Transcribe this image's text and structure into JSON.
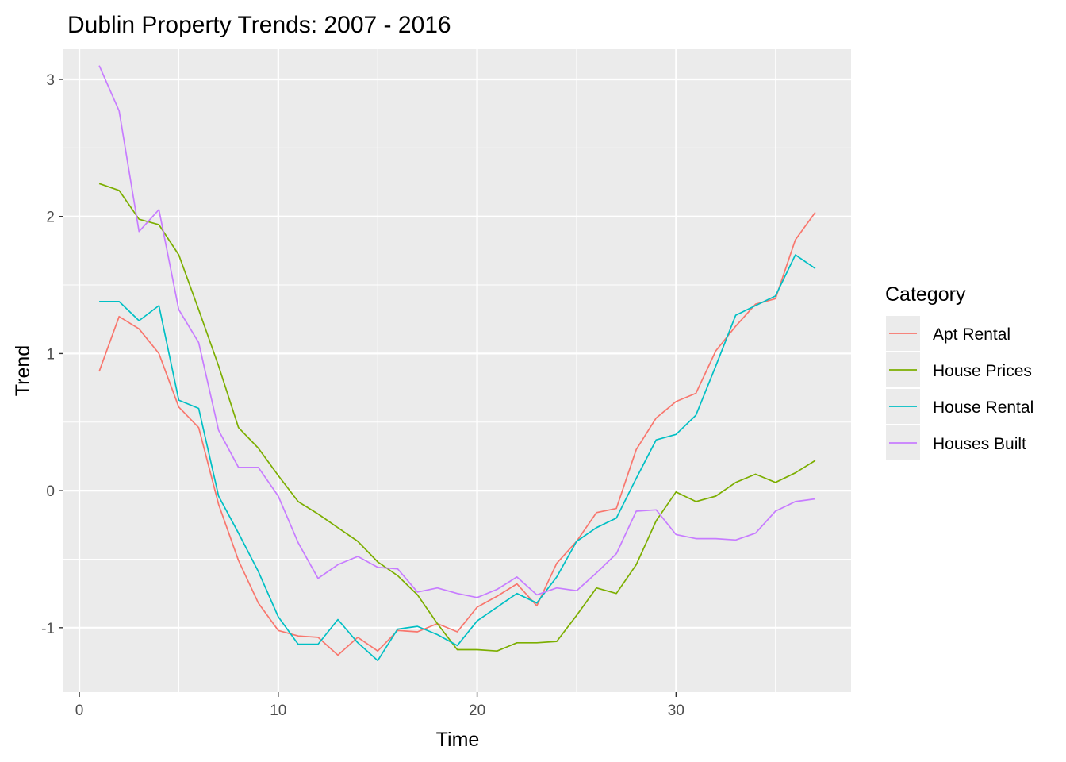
{
  "chart_data": {
    "type": "line",
    "title": "Dublin Property Trends: 2007 - 2016",
    "xlabel": "Time",
    "ylabel": "Trend",
    "xlim": [
      -0.8,
      38.8
    ],
    "ylim": [
      -1.47,
      3.22
    ],
    "xticks": [
      0,
      10,
      20,
      30
    ],
    "yticks": [
      -1,
      0,
      1,
      2,
      3
    ],
    "grid": true,
    "legend": {
      "title": "Category",
      "position": "right"
    },
    "x": [
      1,
      2,
      3,
      4,
      5,
      6,
      7,
      8,
      9,
      10,
      11,
      12,
      13,
      14,
      15,
      16,
      17,
      18,
      19,
      20,
      21,
      22,
      23,
      24,
      25,
      26,
      27,
      28,
      29,
      30,
      31,
      32,
      33,
      34,
      35,
      36,
      37
    ],
    "series": [
      {
        "name": "Apt Rental",
        "color": "#F8766D",
        "values": [
          0.87,
          1.27,
          1.18,
          1.0,
          0.61,
          0.46,
          -0.1,
          -0.51,
          -0.82,
          -1.02,
          -1.06,
          -1.07,
          -1.2,
          -1.07,
          -1.17,
          -1.02,
          -1.03,
          -0.97,
          -1.03,
          -0.85,
          -0.77,
          -0.68,
          -0.84,
          -0.53,
          -0.37,
          -0.16,
          -0.13,
          0.3,
          0.53,
          0.65,
          0.71,
          1.02,
          1.2,
          1.36,
          1.4,
          1.83,
          2.03
        ]
      },
      {
        "name": "House Prices",
        "color": "#7CAE00",
        "values": [
          2.24,
          2.19,
          1.98,
          1.94,
          1.72,
          1.32,
          0.91,
          0.46,
          0.31,
          0.11,
          -0.08,
          -0.17,
          -0.27,
          -0.37,
          -0.52,
          -0.62,
          -0.76,
          -0.97,
          -1.16,
          -1.16,
          -1.17,
          -1.11,
          -1.11,
          -1.1,
          -0.91,
          -0.71,
          -0.75,
          -0.54,
          -0.22,
          -0.01,
          -0.08,
          -0.04,
          0.06,
          0.12,
          0.06,
          0.13,
          0.22
        ]
      },
      {
        "name": "House Rental",
        "color": "#00BFC4",
        "values": [
          1.38,
          1.38,
          1.24,
          1.35,
          0.66,
          0.6,
          -0.04,
          -0.31,
          -0.59,
          -0.92,
          -1.12,
          -1.12,
          -0.94,
          -1.11,
          -1.24,
          -1.01,
          -0.99,
          -1.05,
          -1.13,
          -0.95,
          -0.85,
          -0.75,
          -0.82,
          -0.63,
          -0.37,
          -0.27,
          -0.2,
          0.09,
          0.37,
          0.41,
          0.55,
          0.91,
          1.28,
          1.35,
          1.42,
          1.72,
          1.62
        ]
      },
      {
        "name": "Houses Built",
        "color": "#C77CFF",
        "values": [
          3.1,
          2.77,
          1.89,
          2.05,
          1.32,
          1.08,
          0.44,
          0.17,
          0.17,
          -0.04,
          -0.38,
          -0.64,
          -0.54,
          -0.48,
          -0.56,
          -0.57,
          -0.74,
          -0.71,
          -0.75,
          -0.78,
          -0.72,
          -0.63,
          -0.76,
          -0.71,
          -0.73,
          -0.6,
          -0.46,
          -0.15,
          -0.14,
          -0.32,
          -0.35,
          -0.35,
          -0.36,
          -0.31,
          -0.15,
          -0.08,
          -0.06
        ]
      }
    ]
  }
}
